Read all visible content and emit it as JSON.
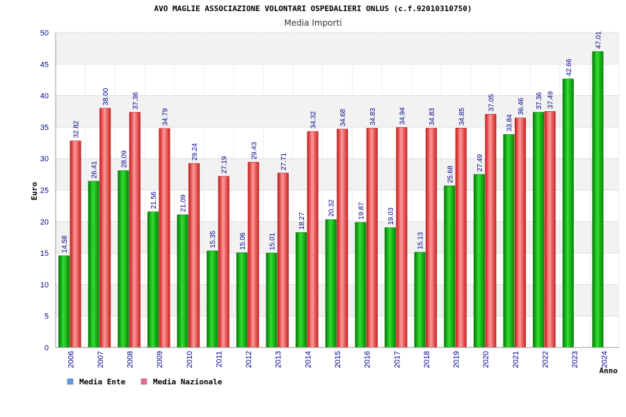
{
  "chart_data": {
    "type": "bar",
    "title": "AVO MAGLIE ASSOCIAZIONE VOLONTARI OSPEDALIERI ONLUS (c.f.92010310750)",
    "subtitle": "Media Importi",
    "xlabel": "Anno",
    "ylabel": "Euro",
    "ylim": [
      0,
      50
    ],
    "yticks": [
      "0",
      "5",
      "10",
      "15",
      "20",
      "25",
      "30",
      "35",
      "40",
      "45",
      "50"
    ],
    "categories": [
      "2006",
      "2007",
      "2008",
      "2009",
      "2010",
      "2011",
      "2012",
      "2013",
      "2014",
      "2015",
      "2016",
      "2017",
      "2018",
      "2019",
      "2020",
      "2021",
      "2022",
      "2023",
      "2024"
    ],
    "series": [
      {
        "name": "Media Ente",
        "color": "#00aa00",
        "legend_color": "#5599ee",
        "values": [
          14.58,
          26.41,
          28.09,
          21.56,
          21.09,
          15.35,
          15.06,
          15.01,
          18.27,
          20.32,
          19.87,
          19.03,
          15.13,
          25.68,
          27.49,
          33.84,
          37.36,
          42.66,
          47.01
        ],
        "labels": [
          "14.58",
          "26.41",
          "28.09",
          "21.56",
          "21.09",
          "15.35",
          "15.06",
          "15.01",
          "18.27",
          "20.32",
          "19.87",
          "19.03",
          "15.13",
          "25.68",
          "27.49",
          "33.84",
          "37.36",
          "42.66",
          "47.01"
        ]
      },
      {
        "name": "Media Nazionale",
        "color": "#dd2222",
        "legend_color": "#ee6699",
        "values": [
          32.82,
          38.0,
          37.36,
          34.79,
          29.24,
          27.19,
          29.43,
          27.71,
          34.32,
          34.68,
          34.83,
          34.94,
          34.83,
          34.85,
          37.05,
          36.46,
          37.49,
          null,
          null
        ],
        "labels": [
          "32.82",
          "38.00",
          "37.36",
          "34.79",
          "29.24",
          "27.19",
          "29.43",
          "27.71",
          "34.32",
          "34.68",
          "34.83",
          "34.94",
          "34.83",
          "34.85",
          "37.05",
          "36.46",
          "37.49",
          "",
          ""
        ]
      }
    ],
    "grid": true,
    "legend_position": "bottom-left"
  }
}
